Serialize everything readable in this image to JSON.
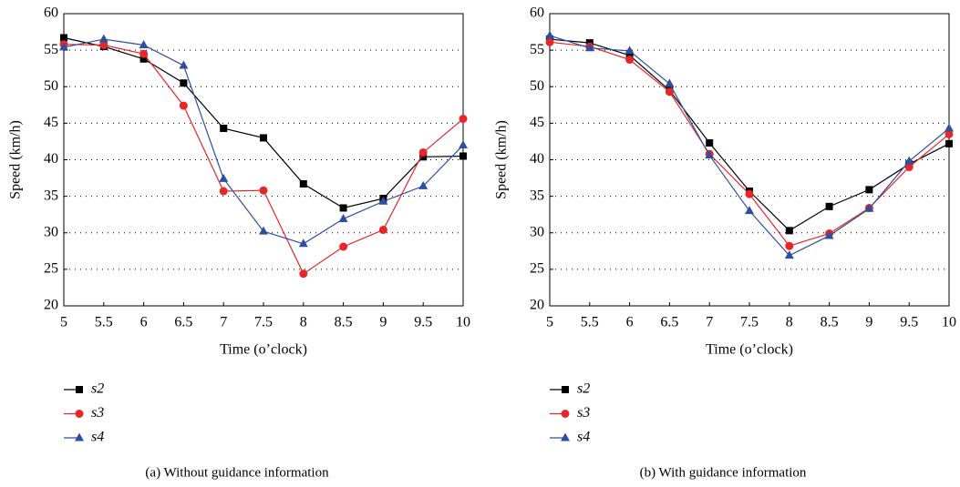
{
  "chart_data": [
    {
      "type": "line",
      "xlabel": "Time (o’clock)",
      "ylabel": "Speed (km/h)",
      "caption": "(a)  Without guidance information",
      "x": [
        5,
        5.5,
        6,
        6.5,
        7,
        7.5,
        8,
        8.5,
        9,
        9.5,
        10
      ],
      "series": [
        {
          "name": "s2",
          "color": "#000000",
          "marker": "square",
          "values": [
            56.7,
            55.5,
            53.8,
            50.5,
            44.3,
            43,
            36.7,
            33.4,
            34.7,
            40.4,
            40.5
          ]
        },
        {
          "name": "s3",
          "color": "#e8262a",
          "marker": "circle",
          "values": [
            55.8,
            55.7,
            54.5,
            47.4,
            35.7,
            35.8,
            24.4,
            28.1,
            30.4,
            41,
            45.6
          ]
        },
        {
          "name": "s4",
          "color": "#2e4fa0",
          "marker": "triangle",
          "values": [
            55.4,
            56.5,
            55.7,
            52.9,
            37.4,
            30.2,
            28.5,
            31.9,
            34.3,
            36.4,
            42
          ]
        }
      ],
      "xlim": [
        5,
        10
      ],
      "ylim": [
        20,
        60
      ],
      "xticks": [
        5,
        5.5,
        6,
        6.5,
        7,
        7.5,
        8,
        8.5,
        9,
        9.5,
        10
      ],
      "yticks": [
        20,
        25,
        30,
        35,
        40,
        45,
        50,
        55,
        60
      ],
      "grid": true
    },
    {
      "type": "line",
      "xlabel": "Time (o’clock)",
      "ylabel": "Speed (km/h)",
      "caption": "(b)  With guidance information",
      "x": [
        5,
        5.5,
        6,
        6.5,
        7,
        7.5,
        8,
        8.5,
        9,
        9.5,
        10
      ],
      "series": [
        {
          "name": "s2",
          "color": "#000000",
          "marker": "square",
          "values": [
            56.5,
            56,
            54.3,
            49.5,
            42.3,
            35.7,
            30.3,
            33.6,
            35.9,
            39.4,
            42.2
          ]
        },
        {
          "name": "s3",
          "color": "#e8262a",
          "marker": "circle",
          "values": [
            56.1,
            55.5,
            53.7,
            49.3,
            40.8,
            35.3,
            28.2,
            29.9,
            33.4,
            39,
            43.5
          ]
        },
        {
          "name": "s4",
          "color": "#2e4fa0",
          "marker": "triangle",
          "values": [
            57,
            55.3,
            54.9,
            50.4,
            40.6,
            33,
            26.9,
            29.6,
            33.3,
            39.8,
            44.3
          ]
        }
      ],
      "xlim": [
        5,
        10
      ],
      "ylim": [
        20,
        60
      ],
      "xticks": [
        5,
        5.5,
        6,
        6.5,
        7,
        7.5,
        8,
        8.5,
        9,
        9.5,
        10
      ],
      "yticks": [
        20,
        25,
        30,
        35,
        40,
        45,
        50,
        55,
        60
      ],
      "grid": true
    }
  ]
}
